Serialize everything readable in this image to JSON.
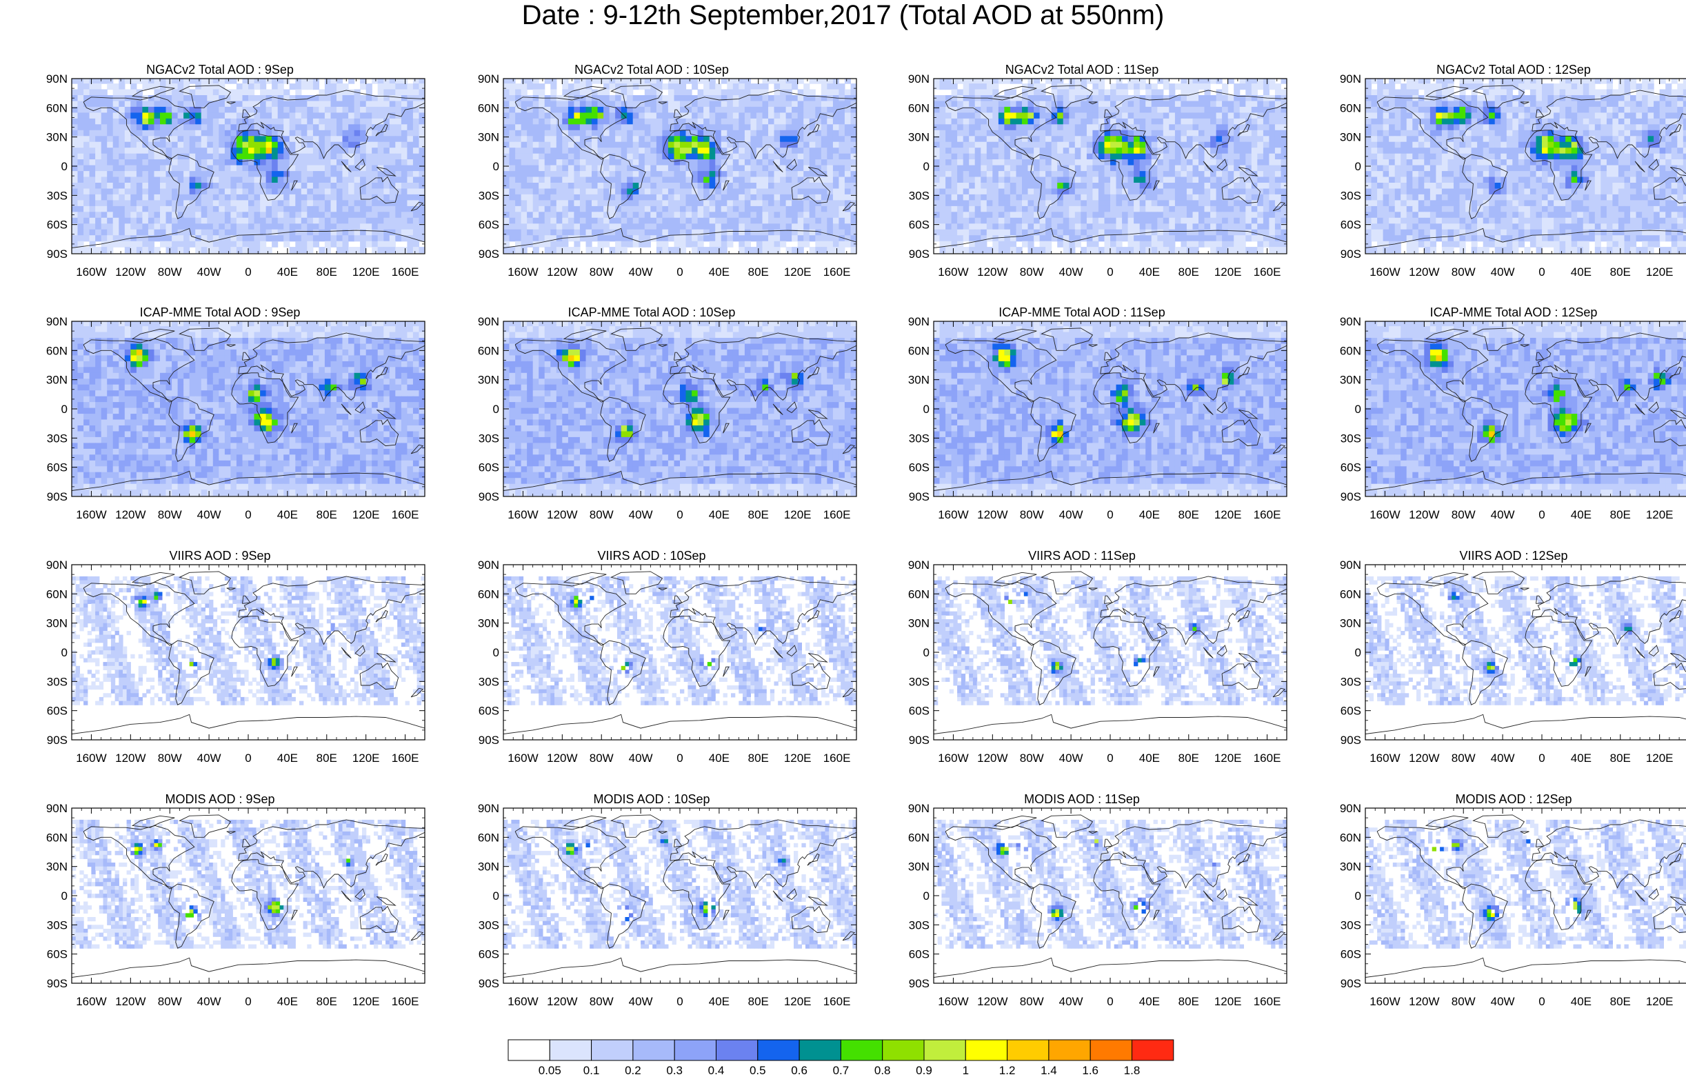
{
  "title": "Date : 9-12th September,2017 (Total AOD at 550nm)",
  "lat_ticks": [
    "90N",
    "60N",
    "30N",
    "0",
    "30S",
    "60S",
    "90S"
  ],
  "lon_ticks": [
    "160W",
    "120W",
    "80W",
    "40W",
    "0",
    "40E",
    "80E",
    "120E",
    "160E"
  ],
  "rows": [
    {
      "product": "NGACv2 Total AOD",
      "panels": [
        {
          "title": "NGACv2 Total AOD : 9Sep"
        },
        {
          "title": "NGACv2 Total AOD : 10Sep"
        },
        {
          "title": "NGACv2 Total AOD : 11Sep"
        },
        {
          "title": "NGACv2 Total AOD : 12Sep"
        }
      ]
    },
    {
      "product": "ICAP-MME Total AOD",
      "panels": [
        {
          "title": "ICAP-MME Total AOD : 9Sep"
        },
        {
          "title": "ICAP-MME Total AOD : 10Sep"
        },
        {
          "title": "ICAP-MME Total AOD : 11Sep"
        },
        {
          "title": "ICAP-MME Total AOD : 12Sep"
        }
      ]
    },
    {
      "product": "VIIRS AOD",
      "panels": [
        {
          "title": "VIIRS AOD : 9Sep"
        },
        {
          "title": "VIIRS AOD : 10Sep"
        },
        {
          "title": "VIIRS AOD : 11Sep"
        },
        {
          "title": "VIIRS AOD : 12Sep"
        }
      ]
    },
    {
      "product": "MODIS AOD",
      "panels": [
        {
          "title": "MODIS AOD : 9Sep"
        },
        {
          "title": "MODIS AOD : 10Sep"
        },
        {
          "title": "MODIS AOD : 11Sep"
        },
        {
          "title": "MODIS AOD : 12Sep"
        }
      ]
    }
  ],
  "colorbar": {
    "colors": [
      "#ffffff",
      "#dbe4fd",
      "#c1cffc",
      "#a7bafa",
      "#8da3f8",
      "#6b82f0",
      "#1464ee",
      "#009191",
      "#44e000",
      "#8fe000",
      "#c1ee3c",
      "#ffff00",
      "#ffcc00",
      "#ffa600",
      "#ff7a00",
      "#ff2a12"
    ],
    "labels": [
      "0.05",
      "0.1",
      "0.2",
      "0.3",
      "0.4",
      "0.5",
      "0.6",
      "0.7",
      "0.8",
      "0.9",
      "1",
      "1.2",
      "1.4",
      "1.6",
      "1.8"
    ]
  }
}
